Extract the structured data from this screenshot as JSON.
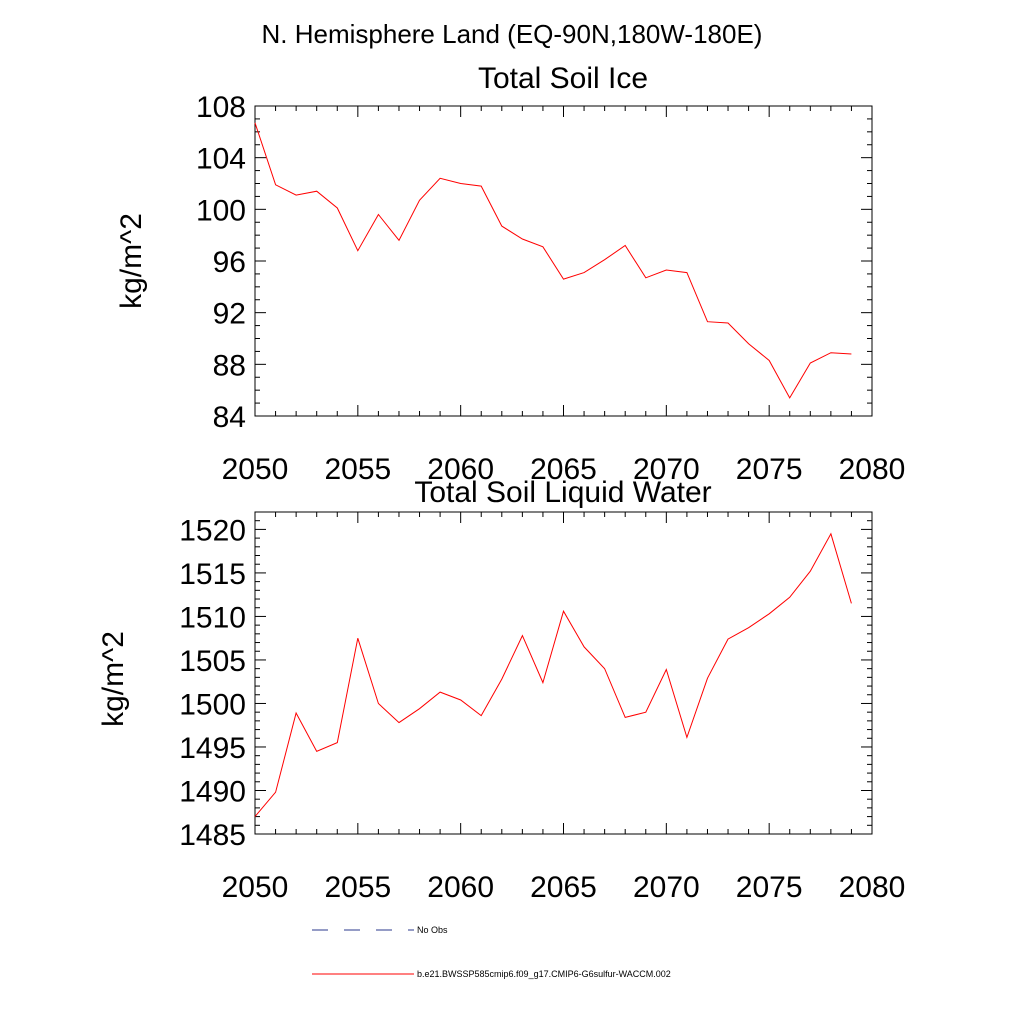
{
  "figure": {
    "title": "N. Hemisphere Land (EQ-90N,180W-180E)"
  },
  "chart_data": [
    {
      "type": "line",
      "title": "Total Soil Ice",
      "xlabel": "",
      "ylabel": "kg/m^2",
      "xlim": [
        2050,
        2080
      ],
      "ylim": [
        84,
        108
      ],
      "xticks": [
        2050,
        2055,
        2060,
        2065,
        2070,
        2075,
        2080
      ],
      "xtick_labels": [
        "2050",
        "2055",
        "2060",
        "2065",
        "2070",
        "2075",
        "2080"
      ],
      "yticks": [
        84,
        88,
        92,
        96,
        100,
        104,
        108
      ],
      "ytick_labels": [
        "84",
        "88",
        "92",
        "96",
        "100",
        "104",
        "108"
      ],
      "x_minor_step": 1,
      "y_minor_step": 1,
      "grid": false,
      "x": [
        2050,
        2051,
        2052,
        2053,
        2054,
        2055,
        2056,
        2057,
        2058,
        2059,
        2060,
        2061,
        2062,
        2063,
        2064,
        2065,
        2066,
        2067,
        2068,
        2069,
        2070,
        2071,
        2072,
        2073,
        2074,
        2075,
        2076,
        2077,
        2078,
        2079
      ],
      "series": [
        {
          "color": "#ff0000",
          "values": [
            106.7,
            101.9,
            101.1,
            101.4,
            100.1,
            96.8,
            99.6,
            97.6,
            100.7,
            102.4,
            102.0,
            101.8,
            98.7,
            97.7,
            97.1,
            94.6,
            95.1,
            96.1,
            97.2,
            94.7,
            95.3,
            95.1,
            91.3,
            91.2,
            89.6,
            88.3,
            85.4,
            88.1,
            88.9,
            88.8
          ]
        }
      ]
    },
    {
      "type": "line",
      "title": "Total Soil Liquid Water",
      "xlabel": "",
      "ylabel": "kg/m^2",
      "xlim": [
        2050,
        2080
      ],
      "ylim": [
        1485,
        1522
      ],
      "xticks": [
        2050,
        2055,
        2060,
        2065,
        2070,
        2075,
        2080
      ],
      "xtick_labels": [
        "2050",
        "2055",
        "2060",
        "2065",
        "2070",
        "2075",
        "2080"
      ],
      "yticks": [
        1485,
        1490,
        1495,
        1500,
        1505,
        1510,
        1515,
        1520
      ],
      "ytick_labels": [
        "1485",
        "1490",
        "1495",
        "1500",
        "1505",
        "1510",
        "1515",
        "1520"
      ],
      "x_minor_step": 1,
      "y_minor_step": 1,
      "grid": false,
      "x": [
        2050,
        2051,
        2052,
        2053,
        2054,
        2055,
        2056,
        2057,
        2058,
        2059,
        2060,
        2061,
        2062,
        2063,
        2064,
        2065,
        2066,
        2067,
        2068,
        2069,
        2070,
        2071,
        2072,
        2073,
        2074,
        2075,
        2076,
        2077,
        2078,
        2079
      ],
      "series": [
        {
          "color": "#ff0000",
          "values": [
            1487.0,
            1489.8,
            1498.9,
            1494.5,
            1495.5,
            1507.5,
            1500.0,
            1497.8,
            1499.4,
            1501.3,
            1500.4,
            1498.6,
            1502.8,
            1507.8,
            1502.4,
            1510.6,
            1506.5,
            1504.0,
            1498.4,
            1499.0,
            1503.9,
            1496.1,
            1502.9,
            1507.4,
            1508.7,
            1510.3,
            1512.2,
            1515.2,
            1519.5,
            1511.5
          ]
        }
      ]
    }
  ],
  "legend": {
    "placement": "bottom",
    "items": [
      {
        "label": "No Obs",
        "color": "#2b3a8c",
        "style": "dashed"
      },
      {
        "label": "b.e21.BWSSP585cmip6.f09_g17.CMIP6-G6sulfur-WACCM.002",
        "color": "#ff0000",
        "style": "solid"
      }
    ]
  }
}
